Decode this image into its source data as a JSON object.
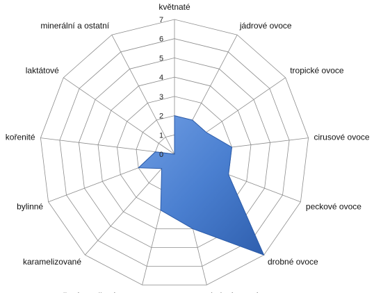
{
  "chart_data": {
    "type": "radar",
    "categories": [
      "květnaté",
      "jádrové ovoce",
      "tropické ovoce",
      "cirusové ovoce",
      "peckové ovoce",
      "drobné ovoce",
      "drobné tmavé ovoce",
      "vařené a sušené ovoce",
      "karamelizované",
      "bylinné",
      "kořenité",
      "laktátové",
      "minerální a ostatní"
    ],
    "ticks": [
      "0",
      "1",
      "2",
      "3",
      "4",
      "5",
      "6",
      "7"
    ],
    "rmax": 7,
    "grid": true,
    "legend": "none",
    "series": [
      {
        "values": [
          2,
          2,
          2,
          3,
          3,
          7,
          4,
          3,
          1,
          2,
          1,
          0,
          0
        ],
        "color": "#4a7fd0"
      }
    ]
  }
}
